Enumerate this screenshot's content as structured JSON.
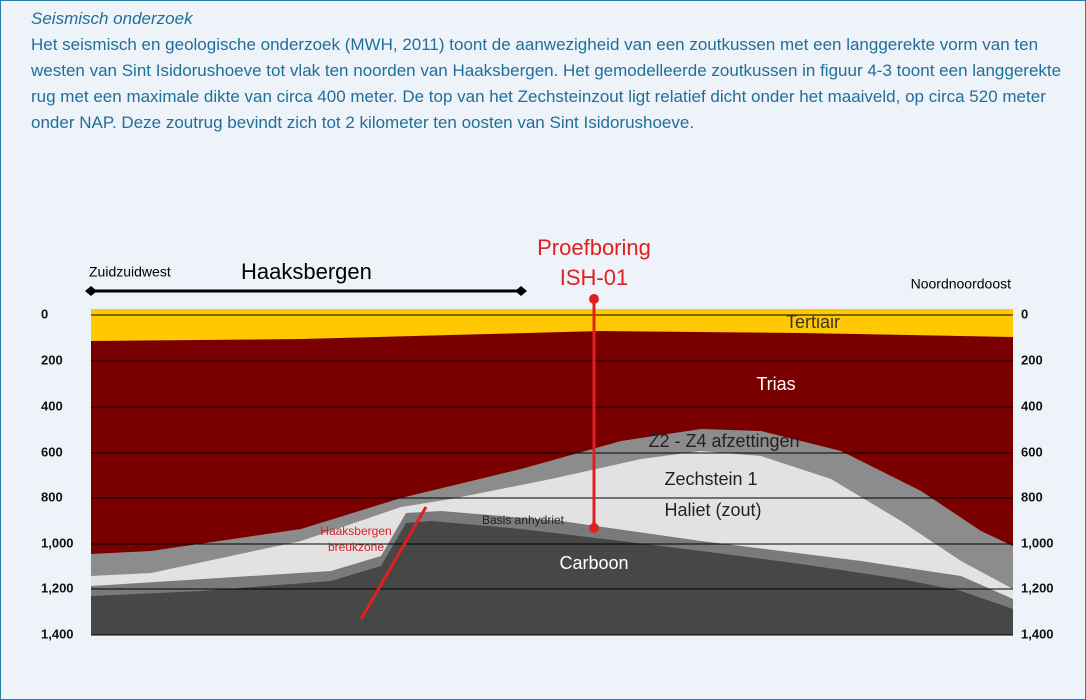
{
  "heading": "Seismisch onderzoek",
  "paragraph": "Het seismisch en geologische onderzoek (MWH, 2011) toont de aanwezigheid van een zoutkussen met een langgerekte vorm van ten westen van Sint Isidorushoeve tot vlak ten noorden van Haaksbergen. Het gemodelleerde zoutkussen in figuur 4-3 toont een langgerekte rug met een maximale dikte van circa 400 meter. De top van het Zechsteinzout ligt relatief dicht onder het maaiveld, op circa 520 meter onder NAP. Deze zoutrug bevindt zich tot 2 kilometer ten oosten van Sint Isidorushoeve.",
  "figure": {
    "west_label": "Zuidzuidwest",
    "town_label": "Haaksbergen",
    "borehole_label": [
      "Proefboring",
      "ISH-01"
    ],
    "east_label": "Noordnoordoost",
    "depth_ticks": [
      "0",
      "200",
      "400",
      "600",
      "800",
      "1,000",
      "1,200",
      "1,400"
    ],
    "layers": [
      "Tertiair",
      "Trias",
      "Z2 - Z4 afzettingen",
      "Zechstein 1",
      "Haliet (zout)",
      "Basis anhydriet",
      "Carboon"
    ],
    "fault_label": [
      "Haaksbergen",
      "breukzone"
    ]
  }
}
